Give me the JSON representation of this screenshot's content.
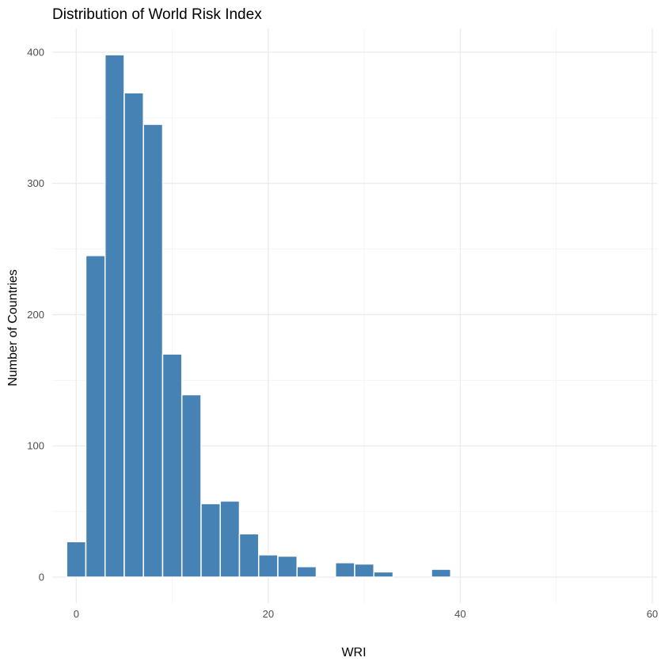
{
  "chart_data": {
    "type": "bar",
    "title": "Distribution of World Risk Index",
    "xlabel": "WRI",
    "ylabel": "Number of Countries",
    "xlim": [
      -2.5,
      60.5
    ],
    "ylim": [
      -19.9,
      418
    ],
    "x_ticks": [
      0,
      20,
      40,
      60
    ],
    "y_ticks": [
      0,
      100,
      200,
      300,
      400
    ],
    "x_tick_labels": [
      "0",
      "20",
      "40",
      "60"
    ],
    "y_tick_labels": [
      "0",
      "100",
      "200",
      "300",
      "400"
    ],
    "grid": true,
    "bin_width": 2,
    "bins": [
      {
        "start": -1,
        "end": 1,
        "count": 27
      },
      {
        "start": 1,
        "end": 3,
        "count": 245
      },
      {
        "start": 3,
        "end": 5,
        "count": 398
      },
      {
        "start": 5,
        "end": 7,
        "count": 369
      },
      {
        "start": 7,
        "end": 9,
        "count": 345
      },
      {
        "start": 9,
        "end": 11,
        "count": 170
      },
      {
        "start": 11,
        "end": 13,
        "count": 139
      },
      {
        "start": 13,
        "end": 15,
        "count": 56
      },
      {
        "start": 15,
        "end": 17,
        "count": 58
      },
      {
        "start": 17,
        "end": 19,
        "count": 33
      },
      {
        "start": 19,
        "end": 21,
        "count": 17
      },
      {
        "start": 21,
        "end": 23,
        "count": 16
      },
      {
        "start": 23,
        "end": 25,
        "count": 8
      },
      {
        "start": 25,
        "end": 27,
        "count": 0
      },
      {
        "start": 27,
        "end": 29,
        "count": 11
      },
      {
        "start": 29,
        "end": 31,
        "count": 10
      },
      {
        "start": 31,
        "end": 33,
        "count": 4
      },
      {
        "start": 33,
        "end": 35,
        "count": 0
      },
      {
        "start": 35,
        "end": 37,
        "count": 0
      },
      {
        "start": 37,
        "end": 39,
        "count": 6
      },
      {
        "start": 39,
        "end": 41,
        "count": 0
      },
      {
        "start": 41,
        "end": 43,
        "count": 0
      },
      {
        "start": 43,
        "end": 45,
        "count": 0
      },
      {
        "start": 45,
        "end": 47,
        "count": 0
      },
      {
        "start": 47,
        "end": 49,
        "count": 0
      },
      {
        "start": 49,
        "end": 51,
        "count": 0
      },
      {
        "start": 51,
        "end": 53,
        "count": 0
      },
      {
        "start": 53,
        "end": 55,
        "count": 0
      },
      {
        "start": 55,
        "end": 57,
        "count": 0
      },
      {
        "start": 57,
        "end": 59,
        "count": 0
      }
    ],
    "colors": {
      "bar_fill": "#4682b4",
      "bar_outline": "#ffffff",
      "grid_major": "#ebebeb",
      "grid_minor": "#f5f5f5"
    }
  }
}
